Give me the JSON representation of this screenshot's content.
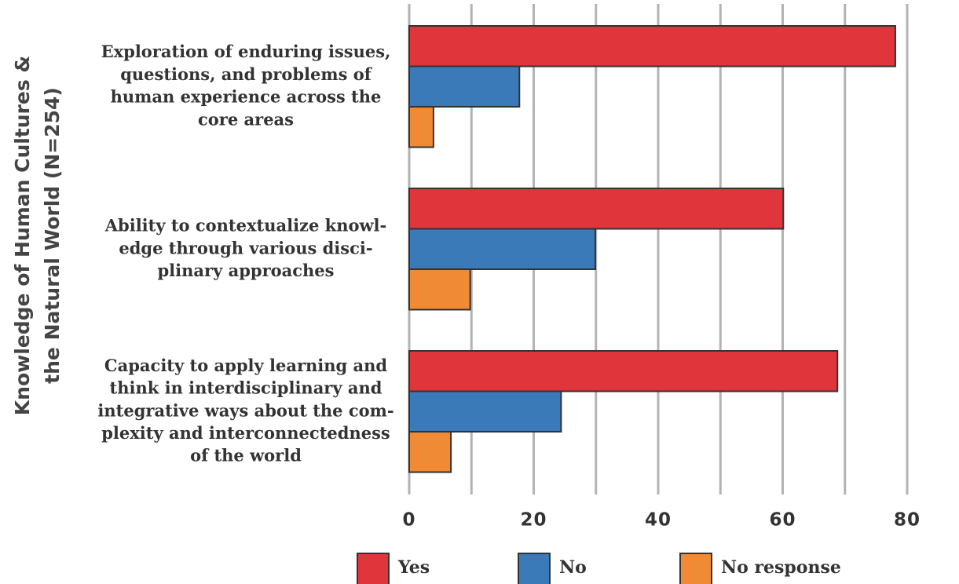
{
  "chart_data": {
    "type": "hbar",
    "ylabel": [
      "Knowledge of Human Cultures &",
      "the Natural World (N=254)"
    ],
    "categories": [
      [
        "Exploration of enduring issues,",
        "questions, and problems of",
        "human experience across the",
        "core areas"
      ],
      [
        "Ability to contextualize knowl-",
        "edge through various disci-",
        "plinary approaches"
      ],
      [
        "Capacity to apply learning and",
        "think in interdisciplinary and",
        "integrative ways about the com-",
        "plexity and interconnectedness",
        "of the world"
      ]
    ],
    "series": [
      {
        "name": "Yes",
        "color": "#e0353b",
        "values": [
          78.1,
          60.1,
          68.8
        ]
      },
      {
        "name": "No",
        "color": "#3a7ab8",
        "values": [
          17.7,
          29.9,
          24.4
        ]
      },
      {
        "name": "No response",
        "color": "#f08a35",
        "values": [
          3.9,
          9.8,
          6.7
        ]
      }
    ],
    "xlim": [
      0,
      80
    ],
    "xticks": [
      0,
      20,
      40,
      60,
      80
    ],
    "xgrid": [
      0,
      10,
      20,
      30,
      40,
      50,
      60,
      70,
      80
    ],
    "legend": "bottom"
  }
}
